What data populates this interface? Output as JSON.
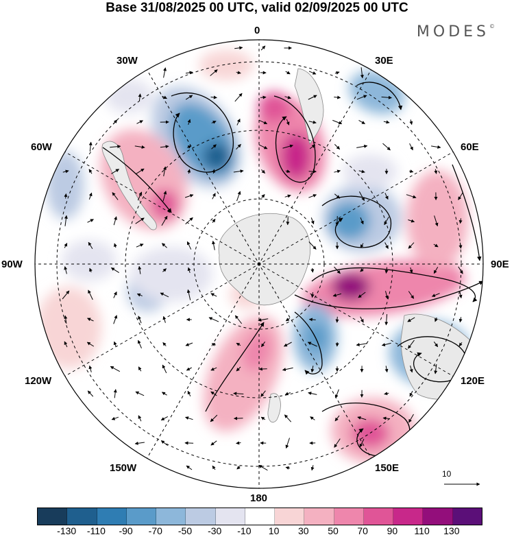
{
  "title": "Base 31/08/2025 00 UTC, valid 02/09/2025 00 UTC",
  "brand": "MODES",
  "brand_mark": "©",
  "lon_labels": {
    "l0": "0",
    "l30e": "30E",
    "l60e": "60E",
    "l90e": "90E",
    "l120e": "120E",
    "l150e": "150E",
    "l180": "180",
    "l150w": "150W",
    "l120w": "120W",
    "l90w": "90W",
    "l60w": "60W",
    "l30w": "30W"
  },
  "vector_scale_label": "10",
  "colorbar": {
    "colors": [
      "#183c5b",
      "#1f5f8e",
      "#2f7db3",
      "#5a9bc9",
      "#8db7da",
      "#bccbe3",
      "#e4e4f0",
      "#ffffff",
      "#f8d5d6",
      "#f4b1c1",
      "#ee86ac",
      "#e05597",
      "#c8288a",
      "#930e7b",
      "#5b0f78"
    ],
    "ticks": [
      "-130",
      "-110",
      "-90",
      "-70",
      "-50",
      "-30",
      "-10",
      "10",
      "30",
      "50",
      "70",
      "90",
      "110",
      "130"
    ]
  }
}
